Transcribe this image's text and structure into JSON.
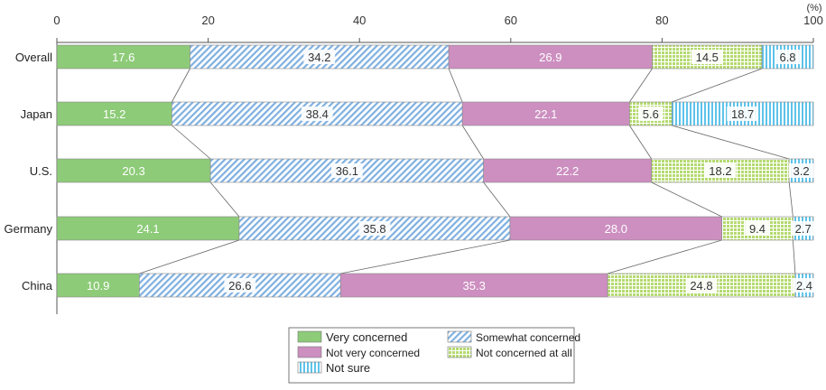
{
  "chart_data": {
    "type": "bar",
    "orientation": "horizontal",
    "stacked": true,
    "unit_label": "(%)",
    "xlim": [
      0,
      100
    ],
    "x_ticks": [
      0,
      20,
      40,
      60,
      80,
      100
    ],
    "categories": [
      "Overall",
      "Japan",
      "U.S.",
      "Germany",
      "China"
    ],
    "series": [
      {
        "name": "Very concerned",
        "values": [
          17.6,
          15.2,
          20.3,
          24.1,
          10.9
        ],
        "color": "#8dcb78",
        "pattern": "solid"
      },
      {
        "name": "Somewhat concerned",
        "values": [
          34.2,
          38.4,
          36.1,
          35.8,
          26.6
        ],
        "color": "#9cc3e8",
        "pattern": "diagonal"
      },
      {
        "name": "Not very concerned",
        "values": [
          26.9,
          22.1,
          22.2,
          28.0,
          35.3
        ],
        "color": "#cc8fc0",
        "pattern": "solid"
      },
      {
        "name": "Not concerned at all",
        "values": [
          14.5,
          5.6,
          18.2,
          9.4,
          24.8
        ],
        "color": "#c4e28a",
        "pattern": "grid"
      },
      {
        "name": "Not sure",
        "values": [
          6.8,
          18.7,
          3.2,
          2.7,
          2.4
        ],
        "color": "#8ed6f2",
        "pattern": "vertical"
      }
    ],
    "legend_position": "bottom",
    "connector_lines": true,
    "grid": false
  }
}
